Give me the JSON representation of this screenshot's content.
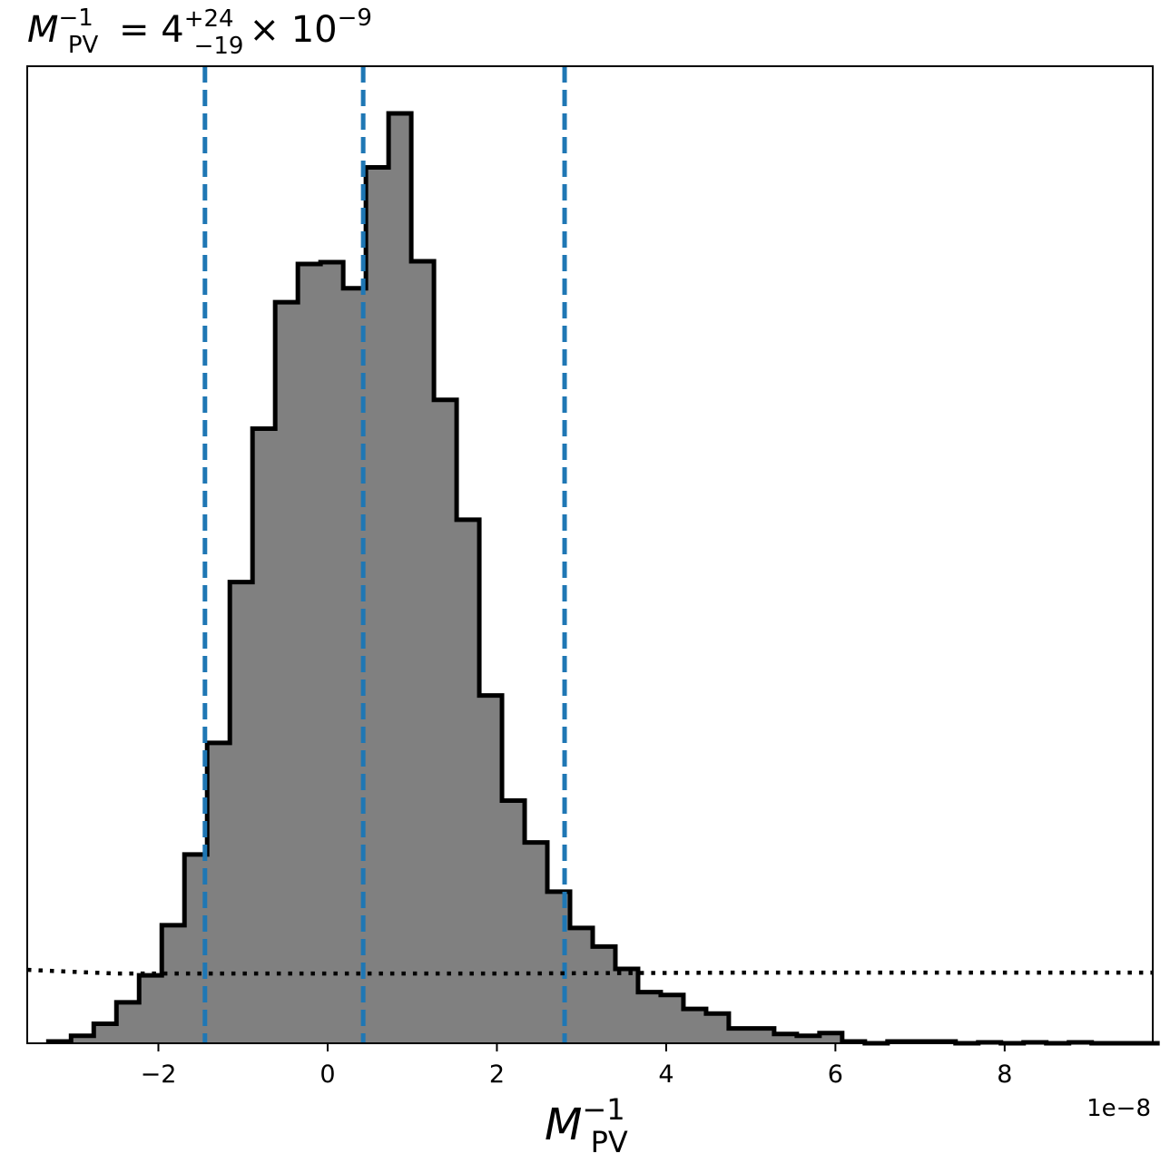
{
  "chart_data": {
    "type": "histogram",
    "title": {
      "base": "M",
      "base_sup": "−1",
      "base_sub": "PV",
      "eq": " = 4",
      "err_sup": "+24",
      "err_sub": "−19",
      "mult": "× 10",
      "mult_sup": "−9"
    },
    "xlabel": {
      "base": "M",
      "sup": "−1",
      "sub": "PV"
    },
    "offset_label": "1e−8",
    "xlim": [
      -3.55,
      9.75
    ],
    "ylim": [
      0,
      1.05
    ],
    "xticks": [
      {
        "value": -2,
        "label": "−2"
      },
      {
        "value": 0,
        "label": "0"
      },
      {
        "value": 2,
        "label": "2"
      },
      {
        "value": 4,
        "label": "4"
      },
      {
        "value": 6,
        "label": "6"
      },
      {
        "value": 8,
        "label": "8"
      }
    ],
    "bins": {
      "start": -3.3,
      "width": 0.268,
      "heights": [
        0.002,
        0.008,
        0.021,
        0.044,
        0.073,
        0.127,
        0.203,
        0.323,
        0.496,
        0.661,
        0.797,
        0.838,
        0.84,
        0.812,
        0.942,
        1.0,
        0.841,
        0.692,
        0.563,
        0.374,
        0.261,
        0.216,
        0.163,
        0.124,
        0.104,
        0.08,
        0.055,
        0.052,
        0.037,
        0.032,
        0.016,
        0.016,
        0.01,
        0.008,
        0.011,
        0.002,
        0.0,
        0.002,
        0.002,
        0.002,
        0.0,
        0.001,
        0.0,
        0.001,
        0.0,
        0.001,
        0.0,
        0.0,
        0.0
      ]
    },
    "quantile_lines": [
      -1.45,
      0.42,
      2.8
    ],
    "prior_line": {
      "points": [
        [
          -3.55,
          0.079
        ],
        [
          -3.05,
          0.077
        ],
        [
          -2.5,
          0.075
        ],
        [
          2.0,
          0.075
        ],
        [
          5.0,
          0.076
        ],
        [
          9.75,
          0.076
        ]
      ]
    },
    "colors": {
      "fill": "#808080",
      "edge": "#000000",
      "quantile": "#1f77b4",
      "prior": "#000000"
    },
    "grid": false,
    "legend": "none"
  }
}
